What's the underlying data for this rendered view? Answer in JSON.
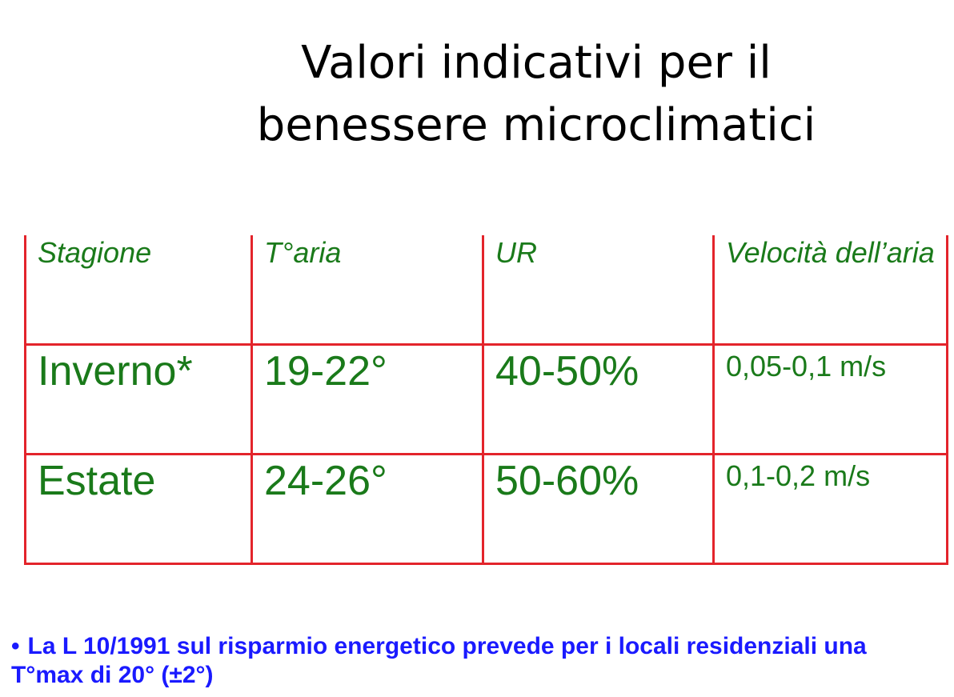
{
  "slide": {
    "title_line1": "Valori indicativi per il",
    "title_line2": "benessere microclimatici"
  },
  "table": {
    "headers": [
      "Stagione",
      "T°aria",
      "UR",
      "Velocità dell’aria"
    ],
    "rows": [
      [
        "Inverno*",
        "19-22°",
        "40-50%",
        "0,05-0,1 m/s"
      ],
      [
        "Estate",
        "24-26°",
        "50-60%",
        "0,1-0,2 m/s"
      ]
    ],
    "colors": {
      "border": "#e3242b",
      "text": "#1a7a1a"
    }
  },
  "note": {
    "bullet": "•",
    "text": "La L 10/1991 sul risparmio energetico prevede per i locali residenziali una T°max di 20° (±2°)",
    "color": "#1a1aff"
  }
}
